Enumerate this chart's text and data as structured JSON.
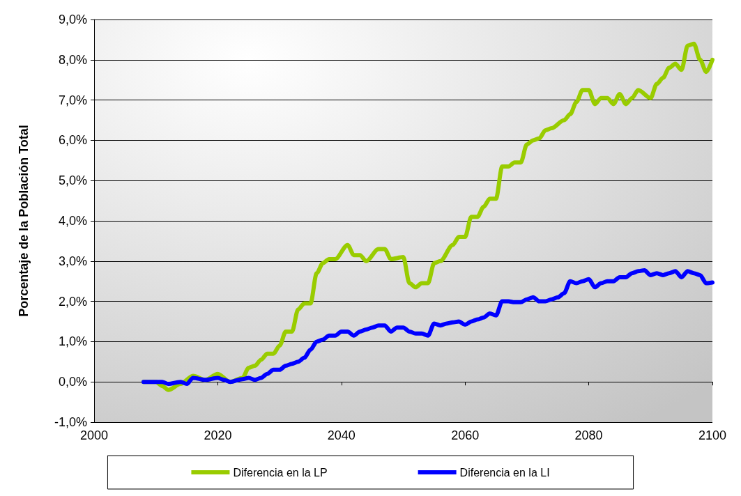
{
  "chart_data": {
    "type": "line",
    "ylabel": "Porcentaje de la Población Total",
    "xlim": [
      2000,
      2100
    ],
    "xticks": [
      2000,
      2020,
      2040,
      2060,
      2080,
      2100
    ],
    "ylim": [
      -1,
      9
    ],
    "yticks": [
      {
        "value": -1,
        "label": "-1,0%"
      },
      {
        "value": 0,
        "label": "0,0%"
      },
      {
        "value": 1,
        "label": "1,0%"
      },
      {
        "value": 2,
        "label": "2,0%"
      },
      {
        "value": 3,
        "label": "3,0%"
      },
      {
        "value": 4,
        "label": "4,0%"
      },
      {
        "value": 5,
        "label": "5,0%"
      },
      {
        "value": 6,
        "label": "6,0%"
      },
      {
        "value": 7,
        "label": "7,0%"
      },
      {
        "value": 8,
        "label": "8,0%"
      },
      {
        "value": 9,
        "label": "9,0%"
      }
    ],
    "grid": "y",
    "legend": "bottom",
    "marker": "none",
    "line_style": "solid",
    "series": [
      {
        "name": "Diferencia en la LP",
        "color": "#99cc00",
        "x": [
          2008,
          2010,
          2011,
          2012,
          2014,
          2016,
          2018,
          2020,
          2022,
          2024,
          2025,
          2026,
          2027,
          2028,
          2029,
          2030,
          2031,
          2032,
          2033,
          2034,
          2035,
          2036,
          2037,
          2038,
          2039,
          2041,
          2042,
          2043,
          2044,
          2046,
          2047,
          2048,
          2050,
          2051,
          2052,
          2053,
          2054,
          2055,
          2056,
          2058,
          2059,
          2060,
          2061,
          2062,
          2063,
          2064,
          2065,
          2066,
          2067,
          2068,
          2069,
          2070,
          2071,
          2072,
          2073,
          2074,
          2076,
          2077,
          2078,
          2079,
          2080,
          2081,
          2082,
          2083,
          2084,
          2085,
          2086,
          2087,
          2088,
          2090,
          2091,
          2092,
          2093,
          2094,
          2095,
          2096,
          2097,
          2098,
          2099,
          2100
        ],
        "values": [
          0,
          0,
          -0.1,
          -0.2,
          -0.05,
          0.15,
          0.05,
          0.2,
          0,
          0.1,
          0.35,
          0.4,
          0.55,
          0.7,
          0.7,
          0.9,
          1.25,
          1.25,
          1.8,
          1.95,
          1.95,
          2.7,
          2.95,
          3.05,
          3.05,
          3.4,
          3.15,
          3.15,
          3.0,
          3.3,
          3.3,
          3.05,
          3.1,
          2.45,
          2.35,
          2.45,
          2.45,
          2.95,
          3.0,
          3.4,
          3.6,
          3.6,
          4.1,
          4.1,
          4.35,
          4.55,
          4.55,
          5.35,
          5.35,
          5.45,
          5.45,
          5.9,
          6.0,
          6.05,
          6.25,
          6.3,
          6.5,
          6.65,
          6.95,
          7.25,
          7.25,
          6.9,
          7.05,
          7.05,
          6.9,
          7.15,
          6.9,
          7.05,
          7.25,
          7.05,
          7.4,
          7.55,
          7.8,
          7.9,
          7.75,
          8.35,
          8.4,
          8.0,
          7.7,
          8.0
        ]
      },
      {
        "name": "Diferencia en la LI",
        "color": "#0000ff",
        "x": [
          2008,
          2010,
          2011,
          2012,
          2014,
          2015,
          2016,
          2018,
          2020,
          2021,
          2022,
          2024,
          2025,
          2026,
          2027,
          2028,
          2029,
          2030,
          2031,
          2032,
          2033,
          2034,
          2035,
          2036,
          2037,
          2038,
          2039,
          2040,
          2041,
          2042,
          2043,
          2044,
          2045,
          2046,
          2047,
          2048,
          2049,
          2050,
          2051,
          2052,
          2053,
          2054,
          2055,
          2056,
          2057,
          2058,
          2059,
          2060,
          2061,
          2062,
          2063,
          2064,
          2065,
          2066,
          2067,
          2068,
          2069,
          2070,
          2071,
          2072,
          2073,
          2074,
          2075,
          2076,
          2077,
          2078,
          2079,
          2080,
          2081,
          2082,
          2083,
          2084,
          2085,
          2086,
          2087,
          2088,
          2089,
          2090,
          2091,
          2092,
          2093,
          2094,
          2095,
          2096,
          2097,
          2098,
          2099,
          2100
        ],
        "values": [
          0,
          0,
          0,
          -0.05,
          0,
          -0.05,
          0.1,
          0.05,
          0.1,
          0.05,
          0,
          0.07,
          0.1,
          0.05,
          0.1,
          0.2,
          0.3,
          0.3,
          0.4,
          0.45,
          0.5,
          0.6,
          0.8,
          1.0,
          1.05,
          1.15,
          1.15,
          1.25,
          1.25,
          1.15,
          1.25,
          1.3,
          1.35,
          1.4,
          1.4,
          1.25,
          1.35,
          1.35,
          1.25,
          1.2,
          1.2,
          1.15,
          1.45,
          1.4,
          1.45,
          1.48,
          1.5,
          1.42,
          1.5,
          1.55,
          1.6,
          1.7,
          1.65,
          2.0,
          2.0,
          1.98,
          1.98,
          2.05,
          2.1,
          2.0,
          2.0,
          2.05,
          2.1,
          2.2,
          2.5,
          2.45,
          2.5,
          2.55,
          2.35,
          2.45,
          2.5,
          2.5,
          2.6,
          2.6,
          2.7,
          2.75,
          2.77,
          2.65,
          2.7,
          2.65,
          2.7,
          2.75,
          2.6,
          2.75,
          2.7,
          2.65,
          2.45,
          2.47
        ]
      }
    ]
  }
}
